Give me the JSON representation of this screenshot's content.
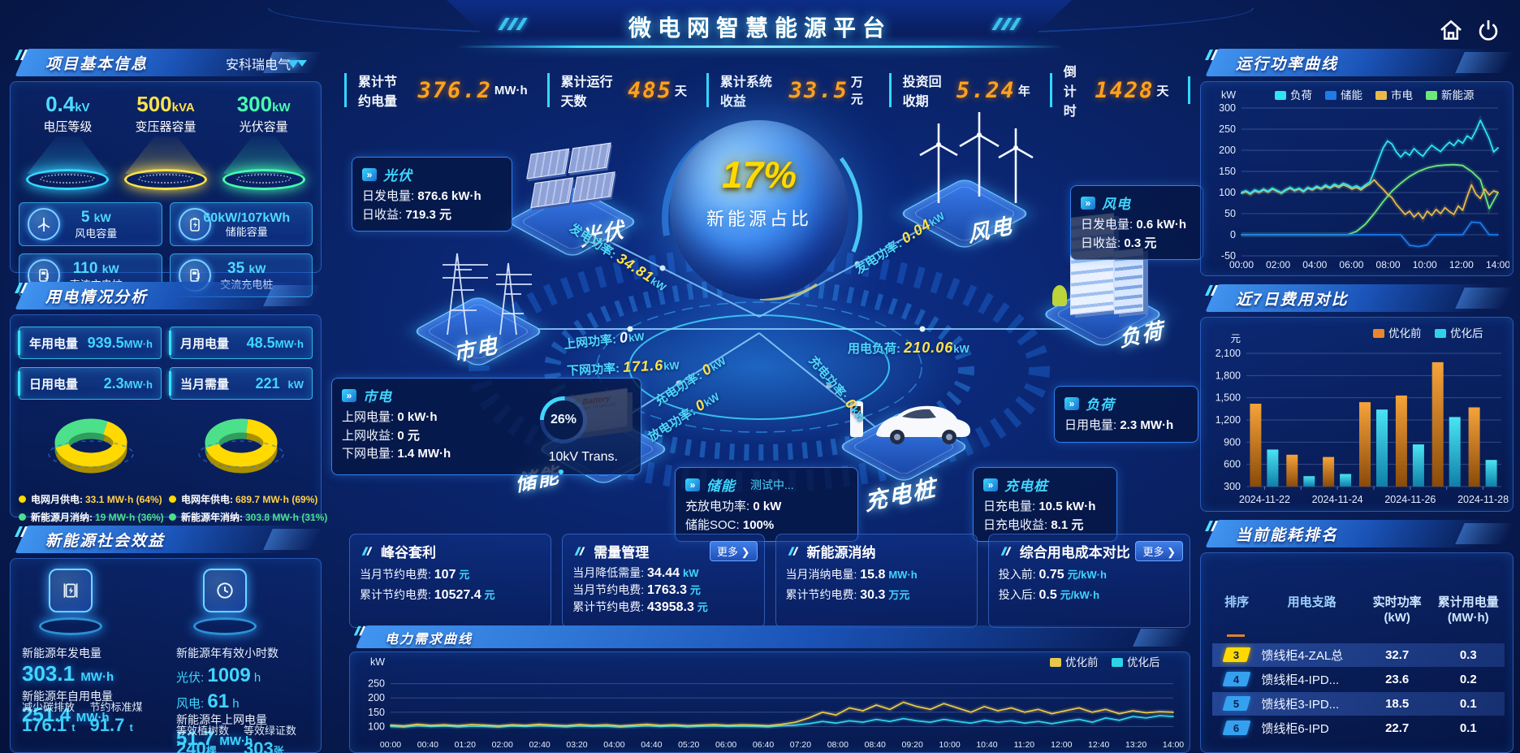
{
  "header": {
    "title": "微电网智慧能源平台"
  },
  "top_stats": [
    {
      "label": "累计节约电量",
      "value": "376.2",
      "unit": "MW·h"
    },
    {
      "label": "累计运行天数",
      "value": "485",
      "unit": "天"
    },
    {
      "label": "累计系统收益",
      "value": "33.5",
      "unit": "万元"
    },
    {
      "label": "投资回收期",
      "value": "5.24",
      "unit": "年"
    },
    {
      "label": "倒计时",
      "value": "1428",
      "unit": "天"
    }
  ],
  "project": {
    "title": "项目基本信息",
    "company": "安科瑞电气",
    "cones": [
      {
        "value": "0.4",
        "unit": "kV",
        "label": "电压等级"
      },
      {
        "value": "500",
        "unit": "kVA",
        "label": "变压器容量"
      },
      {
        "value": "300",
        "unit": "kW",
        "label": "光伏容量"
      }
    ],
    "stats": [
      {
        "value": "5",
        "unit": "kW",
        "label": "风电容量"
      },
      {
        "value": "60kW/107kWh",
        "unit": "",
        "label": "储能容量"
      },
      {
        "value": "110",
        "unit": "kW",
        "label": "直流充电桩"
      },
      {
        "value": "35",
        "unit": "kW",
        "label": "交流充电桩"
      }
    ]
  },
  "usage": {
    "title": "用电情况分析",
    "stats": [
      {
        "label": "年用电量",
        "value": "939.5",
        "unit": "MW·h"
      },
      {
        "label": "月用电量",
        "value": "48.5",
        "unit": "MW·h"
      },
      {
        "label": "日用电量",
        "value": "2.3",
        "unit": "MW·h"
      },
      {
        "label": "当月需量",
        "value": "221",
        "unit": "kW"
      }
    ],
    "legend_month": [
      {
        "label": "电网月供电:",
        "value": "33.1 MW·h (64%)"
      },
      {
        "label": "新能源月消纳:",
        "value": "19 MW·h (36%)"
      }
    ],
    "legend_year": [
      {
        "label": "电网年供电:",
        "value": "689.7 MW·h (69%)"
      },
      {
        "label": "新能源年消纳:",
        "value": "303.8 MW·h (31%)"
      }
    ]
  },
  "benefit": {
    "title": "新能源社会效益",
    "col1": {
      "metric_label": "新能源年发电量",
      "metric_value": "303.1",
      "metric_unit": "MW·h",
      "sub_title": "新能源年自用电量",
      "sub_value": "251.4",
      "sub_unit": "MW·h",
      "statA_label": "减少碳排放",
      "statA_value": "176.1",
      "statA_unit": "t",
      "statB_label": "节约标准煤",
      "statB_value": "91.7",
      "statB_unit": "t"
    },
    "col2": {
      "metric_label": "新能源年有效小时数",
      "pv_label": "光伏:",
      "pv_value": "1009",
      "pv_unit": "h",
      "wind_label": "风电:",
      "wind_value": "61",
      "wind_unit": "h",
      "sub_title": "新能源年上网电量",
      "sub_value": "51.7",
      "sub_unit": "MW·h",
      "statA_label": "等效植树数",
      "statA_value": "240",
      "statA_unit": "棵",
      "statB_label": "等效绿证数",
      "statB_value": "303",
      "statB_unit": "张"
    }
  },
  "diagram": {
    "sphere_value": "17%",
    "sphere_label": "新能源占比",
    "nodes": {
      "pv": "光伏",
      "wind": "风电",
      "grid": "市电",
      "storage": "储能",
      "charger": "充电桩",
      "load": "负荷"
    },
    "flows": {
      "pv_gen": {
        "label": "发电功率:",
        "value": "34.81",
        "unit": "kW"
      },
      "wind_gen": {
        "label": "发电功率:",
        "value": "0.04",
        "unit": "kW"
      },
      "grid_up": {
        "label": "上网功率:",
        "value": "0",
        "unit": "kW"
      },
      "grid_down": {
        "label": "下网功率:",
        "value": "171.6",
        "unit": "kW"
      },
      "load_power": {
        "label": "用电负荷:",
        "value": "210.06",
        "unit": "kW"
      },
      "storage_charge": {
        "label": "充电功率:",
        "value": "0",
        "unit": "kW"
      },
      "storage_discharge": {
        "label": "放电功率:",
        "value": "0",
        "unit": "kW"
      },
      "charger_charge": {
        "label": "充电功率:",
        "value": "0",
        "unit": "kW"
      }
    },
    "boxes": {
      "pv": {
        "title": "光伏",
        "lines": [
          {
            "label": "日发电量:",
            "value": "876.6 kW·h"
          },
          {
            "label": "日收益:",
            "value": "719.3 元"
          }
        ]
      },
      "wind": {
        "title": "风电",
        "lines": [
          {
            "label": "日发电量:",
            "value": "0.6 kW·h"
          },
          {
            "label": "日收益:",
            "value": "0.3 元"
          }
        ]
      },
      "grid": {
        "title": "市电",
        "lines": [
          {
            "label": "上网电量:",
            "value": "0 kW·h"
          },
          {
            "label": "上网收益:",
            "value": "0 元"
          },
          {
            "label": "下网电量:",
            "value": "1.4 MW·h"
          }
        ],
        "trans_pct": "26%",
        "trans_label": "10kV Trans."
      },
      "storage": {
        "title": "储能",
        "badge": "测试中...",
        "lines": [
          {
            "label": "充放电功率:",
            "value": "0 kW"
          },
          {
            "label": "储能SOC:",
            "value": "100%"
          }
        ]
      },
      "charger": {
        "title": "充电桩",
        "lines": [
          {
            "label": "日充电量:",
            "value": "10.5 kW·h"
          },
          {
            "label": "日充电收益:",
            "value": "8.1 元"
          }
        ]
      },
      "load": {
        "title": "负荷",
        "lines": [
          {
            "label": "日用电量:",
            "value": "2.3 MW·h"
          }
        ]
      }
    }
  },
  "cards": [
    {
      "title": "峰谷套利",
      "lines": [
        {
          "label": "当月节约电费:",
          "value": "107",
          "unit": "元"
        },
        {
          "label": "累计节约电费:",
          "value": "10527.4",
          "unit": "元"
        }
      ]
    },
    {
      "title": "需量管理",
      "more": "更多 ❯",
      "lines": [
        {
          "label": "当月降低需量:",
          "value": "34.44",
          "unit": "kW"
        },
        {
          "label": "当月节约电费:",
          "value": "1763.3",
          "unit": "元"
        },
        {
          "label": "累计节约电费:",
          "value": "43958.3",
          "unit": "元"
        }
      ]
    },
    {
      "title": "新能源消纳",
      "lines": [
        {
          "label": "当月消纳电量:",
          "value": "15.8",
          "unit": "MW·h"
        },
        {
          "label": "累计节约电费:",
          "value": "30.3",
          "unit": "万元"
        }
      ]
    },
    {
      "title": "综合用电成本对比",
      "more": "更多 ❯",
      "lines": [
        {
          "label": "投入前:",
          "value": "0.75",
          "unit": "元/kW·h"
        },
        {
          "label": "投入后:",
          "value": "0.5",
          "unit": "元/kW·h"
        }
      ]
    }
  ],
  "demand_panel": {
    "title": "电力需求曲线"
  },
  "right_panels": {
    "power": "运行功率曲线",
    "cost": "近7日费用对比",
    "rank": "当前能耗排名"
  },
  "rank_table": {
    "headers": [
      {
        "l1": "排序",
        "l2": ""
      },
      {
        "l1": "用电支路",
        "l2": ""
      },
      {
        "l1": "实时功率",
        "l2": "(kW)"
      },
      {
        "l1": "累计用电量",
        "l2": "(MW·h)"
      }
    ],
    "rows": [
      {
        "rank": "3",
        "name": "馈线柜4-ZAL总",
        "power": "32.7",
        "energy": "0.3"
      },
      {
        "rank": "4",
        "name": "馈线柜4-IPD...",
        "power": "23.6",
        "energy": "0.2"
      },
      {
        "rank": "5",
        "name": "馈线柜3-IPD...",
        "power": "18.5",
        "energy": "0.1"
      },
      {
        "rank": "6",
        "name": "馈线柜6-IPD",
        "power": "22.7",
        "energy": "0.1"
      }
    ]
  },
  "colors": {
    "accent_cyan": "#35d8ff",
    "value_yellow": "#ffd900",
    "digit_orange": "#ffa21f",
    "bar_before": "#e9872a",
    "bar_after": "#2fd3e8",
    "line_load": "#2ee5ee",
    "line_storage": "#1e7be8",
    "line_grid": "#e8b94a",
    "line_renewable": "#6ce87a"
  },
  "chart_data": [
    {
      "id": "power_curve",
      "type": "line",
      "title": "运行功率曲线",
      "ylabel": "kW",
      "ylim": [
        -50,
        300
      ],
      "yticks": [
        -50,
        0,
        50,
        100,
        150,
        200,
        250,
        300
      ],
      "xticks": [
        "00:00",
        "02:00",
        "04:00",
        "06:00",
        "08:00",
        "10:00",
        "12:00",
        "14:00"
      ],
      "legend_position": "top-center",
      "grid": true,
      "series": [
        {
          "name": "负荷",
          "color": "#2ee5ee",
          "values": [
            100,
            104,
            98,
            106,
            102,
            108,
            103,
            110,
            105,
            100,
            107,
            112,
            106,
            110,
            104,
            112,
            108,
            115,
            110,
            118,
            112,
            120,
            115,
            122,
            118,
            112,
            116,
            110,
            118,
            125,
            150,
            178,
            205,
            222,
            215,
            196,
            184,
            196,
            188,
            204,
            194,
            186,
            200,
            212,
            204,
            197,
            209,
            219,
            211,
            224,
            217,
            234,
            227,
            247,
            271,
            249,
            227,
            196,
            206
          ]
        },
        {
          "name": "储能",
          "color": "#1e7be8",
          "values": [
            0,
            0,
            0,
            0,
            0,
            0,
            0,
            0,
            0,
            0,
            0,
            0,
            0,
            0,
            0,
            0,
            0,
            0,
            0,
            -25,
            -28,
            -24,
            0,
            0,
            0,
            0,
            30,
            28,
            0,
            0
          ]
        },
        {
          "name": "市电",
          "color": "#e8b94a",
          "values": [
            98,
            102,
            96,
            104,
            100,
            106,
            101,
            108,
            103,
            98,
            105,
            110,
            104,
            108,
            102,
            110,
            106,
            112,
            108,
            114,
            110,
            116,
            112,
            118,
            114,
            108,
            112,
            106,
            114,
            120,
            130,
            118,
            108,
            96,
            88,
            72,
            60,
            48,
            56,
            42,
            52,
            38,
            56,
            46,
            60,
            50,
            64,
            55,
            48,
            68,
            58,
            90,
            118,
            96,
            86,
            108,
            94,
            104,
            100
          ]
        },
        {
          "name": "新能源",
          "color": "#6ce87a",
          "values": [
            0,
            0,
            0,
            0,
            0,
            0,
            0,
            0,
            0,
            0,
            0,
            0,
            0,
            8,
            25,
            50,
            78,
            103,
            122,
            138,
            150,
            158,
            163,
            165,
            166,
            164,
            150,
            130,
            62,
            100
          ]
        }
      ]
    },
    {
      "id": "cost7",
      "type": "bar",
      "title": "近7日费用对比",
      "ylabel": "元",
      "ylim": [
        300,
        2100
      ],
      "yticks": [
        300,
        600,
        900,
        1200,
        1500,
        1800,
        2100
      ],
      "categories": [
        "2024-11-22",
        "2024-11-23",
        "2024-11-24",
        "2024-11-25",
        "2024-11-26",
        "2024-11-27",
        "2024-11-28"
      ],
      "xtick_every": 2,
      "legend_position": "top-right",
      "grid": true,
      "series": [
        {
          "name": "优化前",
          "color": "#e9872a",
          "values": [
            1420,
            730,
            700,
            1440,
            1530,
            1980,
            1370
          ]
        },
        {
          "name": "优化后",
          "color": "#2fd3e8",
          "values": [
            800,
            440,
            470,
            1340,
            870,
            1240,
            660
          ]
        }
      ]
    },
    {
      "id": "demand",
      "type": "line",
      "title": "电力需求曲线",
      "ylabel": "kW",
      "ylim": [
        70,
        280
      ],
      "yticks": [
        100,
        150,
        200,
        250
      ],
      "xfont": 10.5,
      "legend_align": "right",
      "grid": true,
      "xticks": [
        "00:00",
        "00:40",
        "01:20",
        "02:00",
        "02:40",
        "03:20",
        "04:00",
        "04:40",
        "05:20",
        "06:00",
        "06:40",
        "07:20",
        "08:00",
        "08:40",
        "09:20",
        "10:00",
        "10:40",
        "11:20",
        "12:00",
        "12:40",
        "13:20",
        "14:00"
      ],
      "series": [
        {
          "name": "优化前",
          "color": "#e8c84a",
          "values": [
            105,
            102,
            108,
            104,
            106,
            103,
            107,
            105,
            102,
            106,
            104,
            108,
            105,
            103,
            107,
            104,
            106,
            102,
            105,
            108,
            104,
            106,
            103,
            105,
            107,
            104,
            106,
            105,
            103,
            108,
            115,
            130,
            150,
            140,
            165,
            155,
            175,
            160,
            185,
            170,
            160,
            180,
            165,
            150,
            170,
            155,
            165,
            150,
            160,
            145,
            155,
            165,
            150,
            160,
            145,
            155,
            148,
            152,
            150
          ]
        },
        {
          "name": "优化后",
          "color": "#2fd3e8",
          "values": [
            100,
            98,
            103,
            100,
            102,
            99,
            101,
            100,
            98,
            102,
            100,
            103,
            101,
            99,
            102,
            100,
            101,
            98,
            100,
            103,
            100,
            102,
            99,
            101,
            102,
            100,
            101,
            100,
            99,
            103,
            105,
            110,
            118,
            112,
            120,
            115,
            125,
            118,
            128,
            120,
            115,
            125,
            118,
            112,
            122,
            115,
            120,
            112,
            118,
            110,
            118,
            125,
            115,
            130,
            122,
            135,
            130,
            138,
            135
          ]
        }
      ]
    },
    {
      "id": "donut_month",
      "type": "pie",
      "values": [
        64,
        36
      ],
      "colors": [
        "#ffd900",
        "#4de08a"
      ],
      "labels": [
        "电网月供电",
        "新能源月消纳"
      ]
    },
    {
      "id": "donut_year",
      "type": "pie",
      "values": [
        69,
        31
      ],
      "colors": [
        "#ffd900",
        "#4de08a"
      ],
      "labels": [
        "电网年供电",
        "新能源年消纳"
      ]
    }
  ]
}
